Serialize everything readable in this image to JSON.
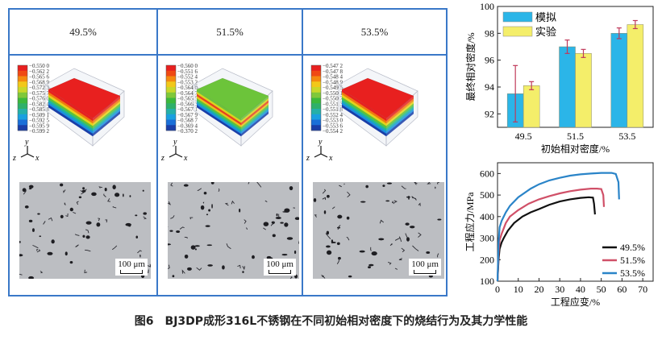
{
  "figure": {
    "caption_number": "图6",
    "caption_text": "BJ3DP成形316L不锈钢在不同初始相对密度下的烧结行为及其力学性能"
  },
  "columns": [
    {
      "header": "49.5%",
      "legend": [
        "−0.550 0",
        "−0.562 2",
        "−0.565 6",
        "−0.568 9",
        "−0.572 3",
        "−0.575 7",
        "−0.576 0",
        "−0.582 4",
        "−0.585 8",
        "−0.509 1",
        "−0.592 5",
        "−0.595 9",
        "−0.599 2"
      ],
      "top_color": "#e8201f",
      "layer_colors": [
        "#e8201f",
        "#f07a10",
        "#e6d21a",
        "#5cc23a",
        "#1fb59a",
        "#1a8fe0",
        "#1a3ea8"
      ],
      "scale_label": "100 μm"
    },
    {
      "header": "51.5%",
      "legend": [
        "−0.560 0",
        "−0.551 6",
        "−0.552 4",
        "−0.553 2",
        "−0.564 0",
        "−0.564 7",
        "−0.565 5",
        "−0.566 3",
        "−0.567 1",
        "−0.567 9",
        "−0.568 7",
        "−0.369 4",
        "−0.370 2"
      ],
      "top_color": "#6cc43a",
      "layer_colors": [
        "#6cc43a",
        "#d9d21e",
        "#e8401f",
        "#e6c21a",
        "#5cc23a",
        "#1fb59a",
        "#1a8fe0",
        "#1a3ea8"
      ],
      "scale_label": "100 μm"
    },
    {
      "header": "53.5%",
      "legend": [
        "−0.547 2",
        "−0.547 8",
        "−0.548 4",
        "−0.548 9",
        "−0.549 5",
        "−0.550 1",
        "−0.550 7",
        "−0.551 3",
        "−0.551 8",
        "−0.552 4",
        "−0.553 0",
        "−0.553 6",
        "−0.554 2"
      ],
      "top_color": "#e8201f",
      "layer_colors": [
        "#e8201f",
        "#f07a10",
        "#e6d21a",
        "#5cc23a",
        "#1fb59a",
        "#1a8fe0",
        "#1a3ea8"
      ],
      "scale_label": "100 μm"
    }
  ],
  "colorbar_colors": [
    "#e8201f",
    "#f04a14",
    "#f58a10",
    "#f2c81a",
    "#c9d82a",
    "#7fc83a",
    "#3cb83c",
    "#2fb06a",
    "#25b0a8",
    "#1aa0e0",
    "#1a6fd8",
    "#1a3ea8"
  ],
  "axis_labels": {
    "x": "x",
    "y": "y",
    "z": "z"
  },
  "chart_data": [
    {
      "type": "bar",
      "categories": [
        "49.5",
        "51.5",
        "53.5"
      ],
      "series": [
        {
          "name": "模拟",
          "color": "#2bb5e8",
          "values": [
            93.5,
            97.0,
            98.0
          ],
          "errors": [
            2.1,
            0.5,
            0.4
          ]
        },
        {
          "name": "实验",
          "color": "#f4ee6a",
          "values": [
            94.1,
            96.5,
            98.65
          ],
          "errors": [
            0.3,
            0.3,
            0.3
          ]
        }
      ],
      "error_color": "#c0395a",
      "xlabel": "初始相对密度/%",
      "ylabel": "最终相对密度/%",
      "ylim": [
        91,
        100
      ],
      "yticks": [
        92,
        94,
        96,
        98,
        100
      ],
      "legend_position": "top-left"
    },
    {
      "type": "line",
      "xlabel": "工程应变/%",
      "ylabel": "工程应力/MPa",
      "xlim": [
        0,
        75
      ],
      "ylim": [
        100,
        650
      ],
      "xticks": [
        0,
        10,
        20,
        30,
        40,
        50,
        60,
        70
      ],
      "yticks": [
        100,
        200,
        300,
        400,
        500,
        600
      ],
      "legend_position": "bottom-right",
      "series": [
        {
          "name": "49.5%",
          "color": "#111111",
          "x": [
            0,
            0.5,
            1,
            2,
            3,
            5,
            8,
            12,
            16,
            20,
            25,
            30,
            35,
            40,
            44,
            46,
            46.5,
            47
          ],
          "y": [
            100,
            200,
            250,
            280,
            300,
            335,
            370,
            400,
            420,
            435,
            455,
            470,
            480,
            487,
            490,
            488,
            460,
            410
          ]
        },
        {
          "name": "51.5%",
          "color": "#d05068",
          "x": [
            0,
            0.5,
            1,
            2,
            4,
            6,
            10,
            15,
            20,
            25,
            30,
            35,
            40,
            45,
            48,
            50,
            51,
            51.3
          ],
          "y": [
            100,
            230,
            290,
            320,
            370,
            400,
            430,
            460,
            480,
            495,
            508,
            518,
            525,
            530,
            530,
            528,
            500,
            445
          ]
        },
        {
          "name": "53.5%",
          "color": "#2a84c8",
          "x": [
            0,
            0.5,
            1,
            2,
            4,
            6,
            10,
            16,
            20,
            25,
            30,
            35,
            40,
            45,
            50,
            55,
            57,
            58.3,
            58.6
          ],
          "y": [
            100,
            280,
            350,
            380,
            420,
            450,
            490,
            530,
            550,
            568,
            580,
            590,
            596,
            600,
            603,
            603,
            598,
            560,
            480
          ]
        }
      ]
    }
  ]
}
